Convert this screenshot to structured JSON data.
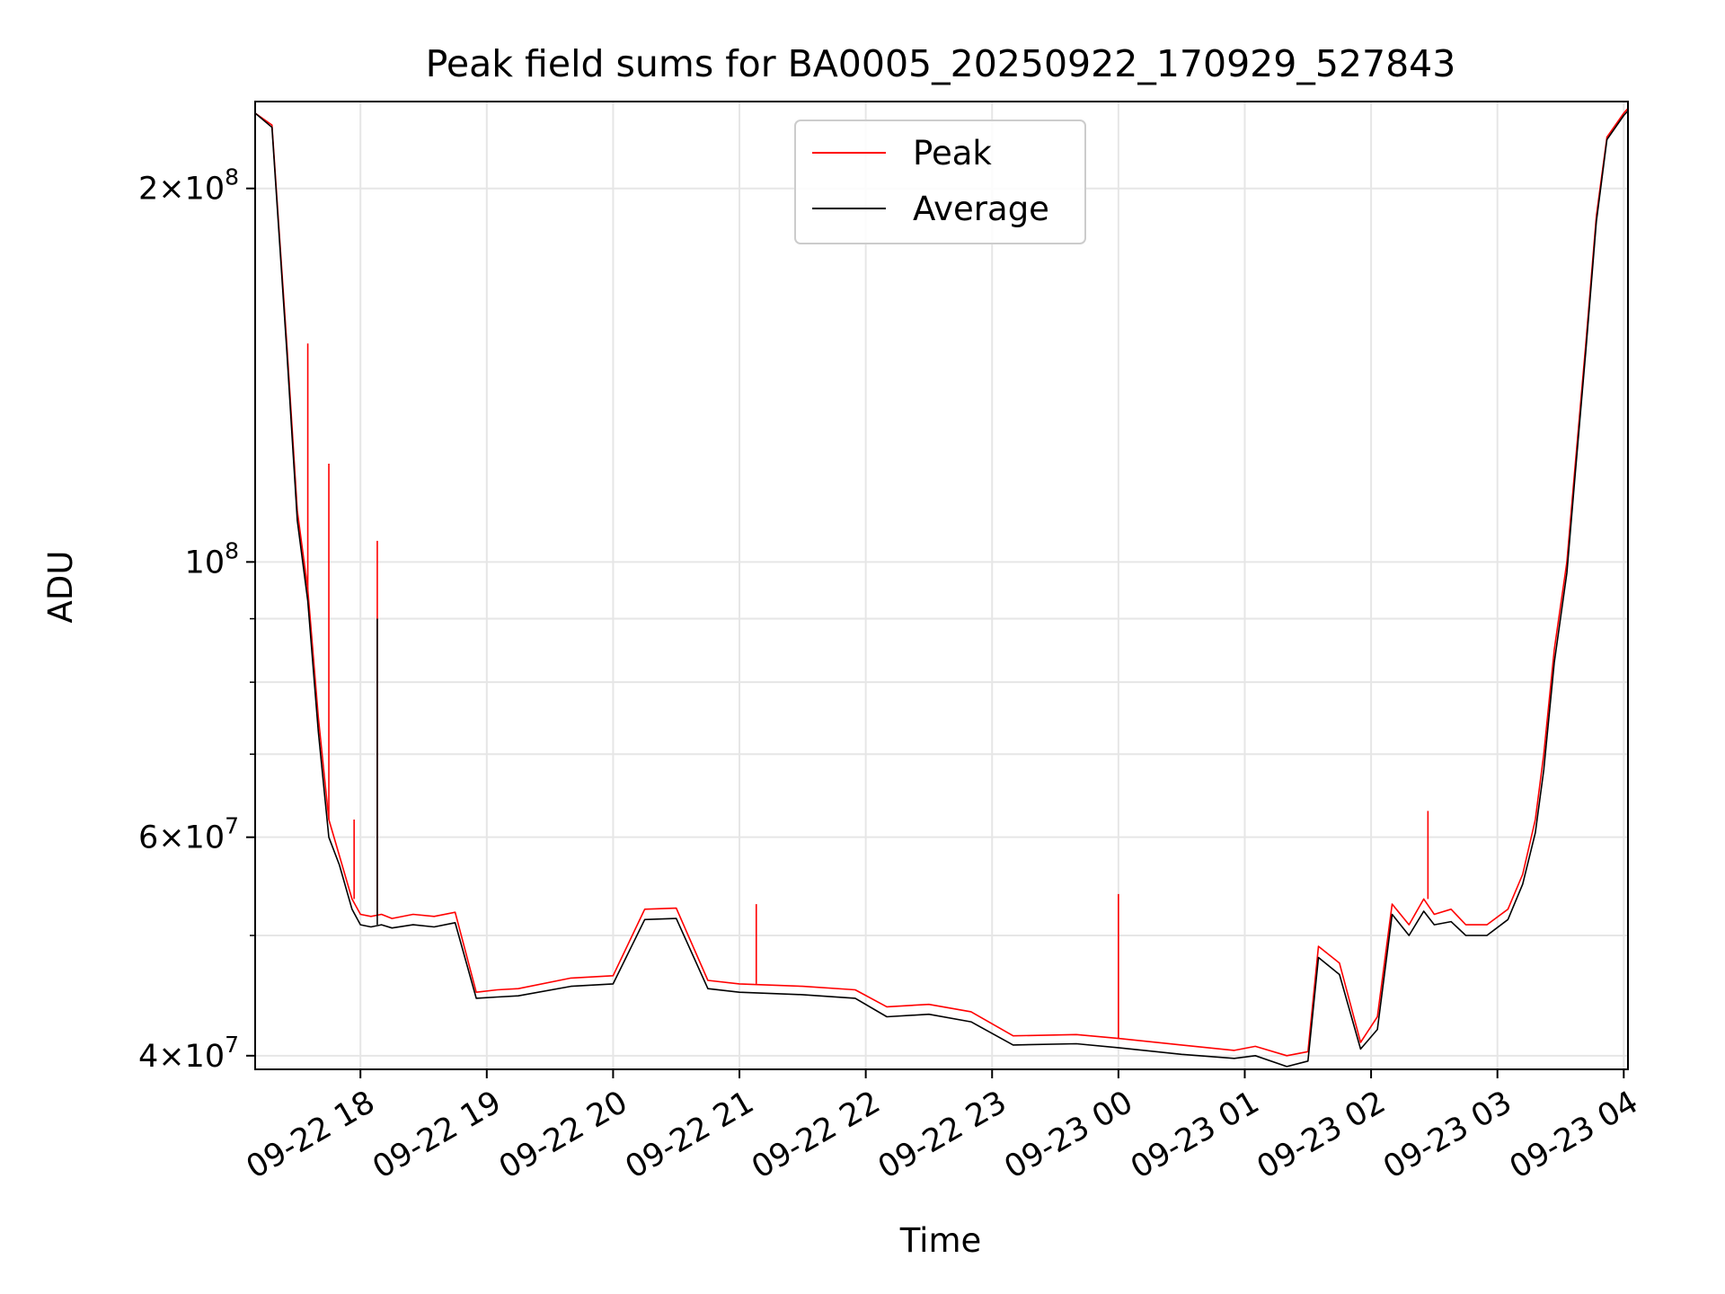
{
  "chart_data": {
    "type": "line",
    "title": "Peak field sums for BA0005_20250922_170929_527843",
    "xlabel": "Time",
    "ylabel": "ADU",
    "yscale": "log",
    "ylim": [
      39000000,
      235000000
    ],
    "xlim": [
      "2025-09-22 17:10",
      "2025-09-23 04:02"
    ],
    "grid": true,
    "legend_position": "upper center",
    "x_ticks": [
      "09-22 18",
      "09-22 19",
      "09-22 20",
      "09-22 21",
      "09-22 22",
      "09-22 23",
      "09-23 00",
      "09-23 01",
      "09-23 02",
      "09-23 03",
      "09-23 04"
    ],
    "x_tick_times": [
      "2025-09-22 18:00",
      "2025-09-22 19:00",
      "2025-09-22 20:00",
      "2025-09-22 21:00",
      "2025-09-22 22:00",
      "2025-09-22 23:00",
      "2025-09-23 00:00",
      "2025-09-23 01:00",
      "2025-09-23 02:00",
      "2025-09-23 03:00",
      "2025-09-23 04:00"
    ],
    "y_major_ticks": [
      {
        "value": 40000000,
        "mantissa": "4",
        "exp": "7"
      },
      {
        "value": 60000000,
        "mantissa": "6",
        "exp": "7"
      },
      {
        "value": 100000000,
        "mantissa": "",
        "exp": "8"
      },
      {
        "value": 200000000,
        "mantissa": "2",
        "exp": "8"
      }
    ],
    "y_minor_ticks": [
      50000000,
      70000000,
      80000000,
      90000000
    ],
    "series": [
      {
        "name": "Peak",
        "color": "#ff0000",
        "x": [
          "2025-09-22 17:10",
          "2025-09-22 17:18",
          "2025-09-22 17:25",
          "2025-09-22 17:30",
          "2025-09-22 17:35",
          "2025-09-22 17:40",
          "2025-09-22 17:45",
          "2025-09-22 17:50",
          "2025-09-22 17:56",
          "2025-09-22 18:00",
          "2025-09-22 18:05",
          "2025-09-22 18:10",
          "2025-09-22 18:15",
          "2025-09-22 18:25",
          "2025-09-22 18:35",
          "2025-09-22 18:45",
          "2025-09-22 18:55",
          "2025-09-22 19:05",
          "2025-09-22 19:15",
          "2025-09-22 19:40",
          "2025-09-22 20:00",
          "2025-09-22 20:15",
          "2025-09-22 20:30",
          "2025-09-22 20:45",
          "2025-09-22 21:00",
          "2025-09-22 21:30",
          "2025-09-22 21:55",
          "2025-09-22 22:10",
          "2025-09-22 22:30",
          "2025-09-22 22:50",
          "2025-09-22 23:10",
          "2025-09-22 23:40",
          "2025-09-23 00:00",
          "2025-09-23 00:30",
          "2025-09-23 00:55",
          "2025-09-23 01:05",
          "2025-09-23 01:20",
          "2025-09-23 01:30",
          "2025-09-23 01:35",
          "2025-09-23 01:45",
          "2025-09-23 01:55",
          "2025-09-23 02:03",
          "2025-09-23 02:10",
          "2025-09-23 02:18",
          "2025-09-23 02:25",
          "2025-09-23 02:30",
          "2025-09-23 02:38",
          "2025-09-23 02:45",
          "2025-09-23 02:55",
          "2025-09-23 03:05",
          "2025-09-23 03:12",
          "2025-09-23 03:18",
          "2025-09-23 03:22",
          "2025-09-23 03:27",
          "2025-09-23 03:33",
          "2025-09-23 03:37",
          "2025-09-23 03:42",
          "2025-09-23 03:47",
          "2025-09-23 03:52",
          "2025-09-23 04:00",
          "2025-09-23 04:02"
        ],
        "y": [
          230000000,
          225000000,
          150000000,
          110000000,
          95000000,
          75000000,
          62000000,
          58000000,
          53500000,
          52000000,
          51800000,
          52000000,
          51600000,
          52000000,
          51800000,
          52200000,
          45000000,
          45200000,
          45300000,
          46200000,
          46400000,
          52500000,
          52600000,
          46000000,
          45700000,
          45500000,
          45200000,
          43800000,
          44000000,
          43400000,
          41500000,
          41600000,
          41300000,
          40800000,
          40400000,
          40700000,
          40000000,
          40300000,
          49000000,
          47500000,
          41000000,
          43000000,
          53000000,
          51000000,
          53500000,
          52000000,
          52500000,
          51000000,
          51000000,
          52500000,
          56000000,
          62000000,
          70000000,
          85000000,
          100000000,
          120000000,
          150000000,
          190000000,
          220000000,
          230000000,
          232000000
        ]
      },
      {
        "name": "Average",
        "color": "#000000",
        "x": [
          "2025-09-22 17:10",
          "2025-09-22 17:18",
          "2025-09-22 17:25",
          "2025-09-22 17:30",
          "2025-09-22 17:35",
          "2025-09-22 17:40",
          "2025-09-22 17:45",
          "2025-09-22 17:50",
          "2025-09-22 17:56",
          "2025-09-22 18:00",
          "2025-09-22 18:05",
          "2025-09-22 18:10",
          "2025-09-22 18:15",
          "2025-09-22 18:25",
          "2025-09-22 18:35",
          "2025-09-22 18:45",
          "2025-09-22 18:55",
          "2025-09-22 19:05",
          "2025-09-22 19:15",
          "2025-09-22 19:40",
          "2025-09-22 20:00",
          "2025-09-22 20:15",
          "2025-09-22 20:30",
          "2025-09-22 20:45",
          "2025-09-22 21:00",
          "2025-09-22 21:30",
          "2025-09-22 21:55",
          "2025-09-22 22:10",
          "2025-09-22 22:30",
          "2025-09-22 22:50",
          "2025-09-22 23:10",
          "2025-09-22 23:40",
          "2025-09-23 00:00",
          "2025-09-23 00:30",
          "2025-09-23 00:55",
          "2025-09-23 01:05",
          "2025-09-23 01:20",
          "2025-09-23 01:30",
          "2025-09-23 01:35",
          "2025-09-23 01:45",
          "2025-09-23 01:55",
          "2025-09-23 02:03",
          "2025-09-23 02:10",
          "2025-09-23 02:18",
          "2025-09-23 02:25",
          "2025-09-23 02:30",
          "2025-09-23 02:38",
          "2025-09-23 02:45",
          "2025-09-23 02:55",
          "2025-09-23 03:05",
          "2025-09-23 03:12",
          "2025-09-23 03:18",
          "2025-09-23 03:22",
          "2025-09-23 03:27",
          "2025-09-23 03:33",
          "2025-09-23 03:37",
          "2025-09-23 03:42",
          "2025-09-23 03:47",
          "2025-09-23 03:52",
          "2025-09-23 04:00",
          "2025-09-23 04:02"
        ],
        "y": [
          230000000,
          224000000,
          148000000,
          108000000,
          93000000,
          73000000,
          60000000,
          57000000,
          52500000,
          51000000,
          50800000,
          51000000,
          50700000,
          51000000,
          50800000,
          51200000,
          44500000,
          44600000,
          44700000,
          45500000,
          45700000,
          51500000,
          51600000,
          45300000,
          45000000,
          44800000,
          44500000,
          43000000,
          43200000,
          42600000,
          40800000,
          40900000,
          40600000,
          40100000,
          39800000,
          40000000,
          39200000,
          39600000,
          48000000,
          46500000,
          40500000,
          42000000,
          52000000,
          50000000,
          52300000,
          51000000,
          51300000,
          50000000,
          50000000,
          51500000,
          55000000,
          60500000,
          68000000,
          83000000,
          98000000,
          118000000,
          148000000,
          188000000,
          219000000,
          229000000,
          231000000
        ]
      }
    ],
    "spikes": [
      {
        "series": "Peak",
        "x": "2025-09-22 17:35",
        "y": 150000000
      },
      {
        "series": "Peak",
        "x": "2025-09-22 17:45",
        "y": 120000000
      },
      {
        "series": "Peak",
        "x": "2025-09-22 17:57",
        "y": 62000000
      },
      {
        "series": "Peak",
        "x": "2025-09-22 18:08",
        "y": 104000000
      },
      {
        "series": "Average",
        "x": "2025-09-22 18:08",
        "y": 90000000
      },
      {
        "series": "Peak",
        "x": "2025-09-22 21:08",
        "y": 53000000
      },
      {
        "series": "Peak",
        "x": "2025-09-23 00:00",
        "y": 54000000
      },
      {
        "series": "Peak",
        "x": "2025-09-23 02:27",
        "y": 63000000
      }
    ]
  }
}
